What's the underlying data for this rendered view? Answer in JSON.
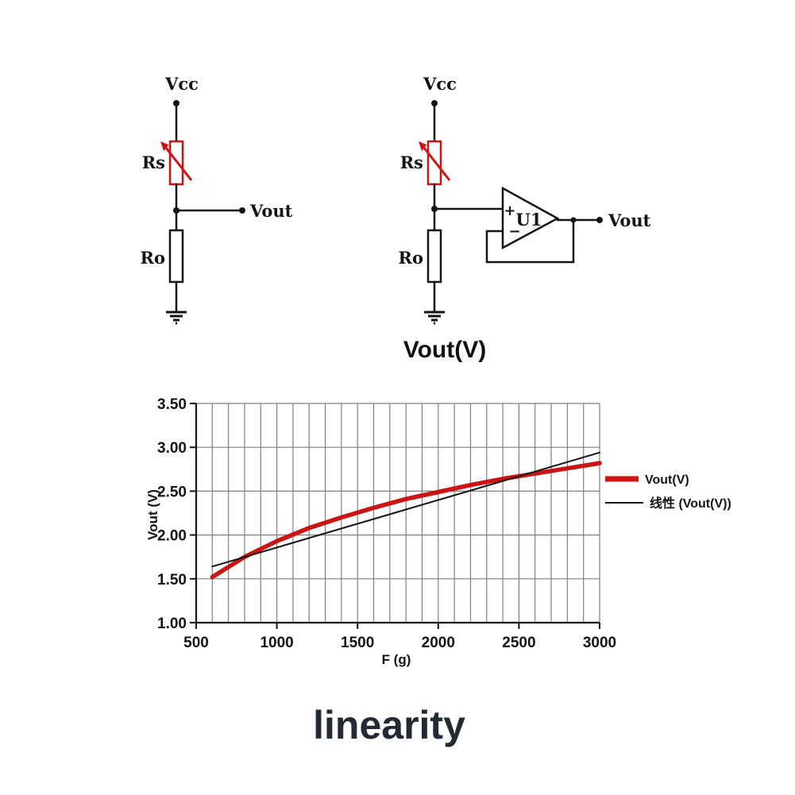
{
  "header": {
    "chart_title": "Vout(V)"
  },
  "caption": "linearity",
  "colors": {
    "accent_red": "#cc1414",
    "line_black": "#141414",
    "grid_gray": "#7f7f7f",
    "caption_dark": "#232a33"
  },
  "circuit_left": {
    "vcc_label": "Vcc",
    "rs_label": "Rs",
    "r0_label": "Ro",
    "vout_label": "Vout"
  },
  "circuit_right": {
    "vcc_label": "Vcc",
    "rs_label": "Rs",
    "r0_label": "Ro",
    "opamp_label": "U1",
    "plus_label": "+",
    "minus_label": "−",
    "vout_label": "Vout"
  },
  "chart_data": {
    "type": "line",
    "title": "Vout(V)",
    "xlabel": "F (g)",
    "ylabel": "Vout (V)",
    "xlim": [
      500,
      3000
    ],
    "ylim": [
      1.0,
      3.5
    ],
    "xtick_step": 500,
    "ytick_step": 0.5,
    "x_minor_grid_step": 100,
    "grid": true,
    "legend_position": "right",
    "series": [
      {
        "name": "Vout(V)",
        "color": "#cc1414",
        "width": 5.5,
        "x": [
          600,
          800,
          1000,
          1200,
          1400,
          1600,
          1800,
          2000,
          2200,
          2400,
          2600,
          2800,
          3000
        ],
        "y": [
          1.52,
          1.75,
          1.93,
          2.08,
          2.2,
          2.31,
          2.41,
          2.49,
          2.57,
          2.64,
          2.7,
          2.76,
          2.82
        ]
      },
      {
        "name": "线性 (Vout(V))",
        "color": "#141414",
        "width": 2,
        "x": [
          600,
          3000
        ],
        "y": [
          1.64,
          2.94
        ]
      }
    ]
  }
}
